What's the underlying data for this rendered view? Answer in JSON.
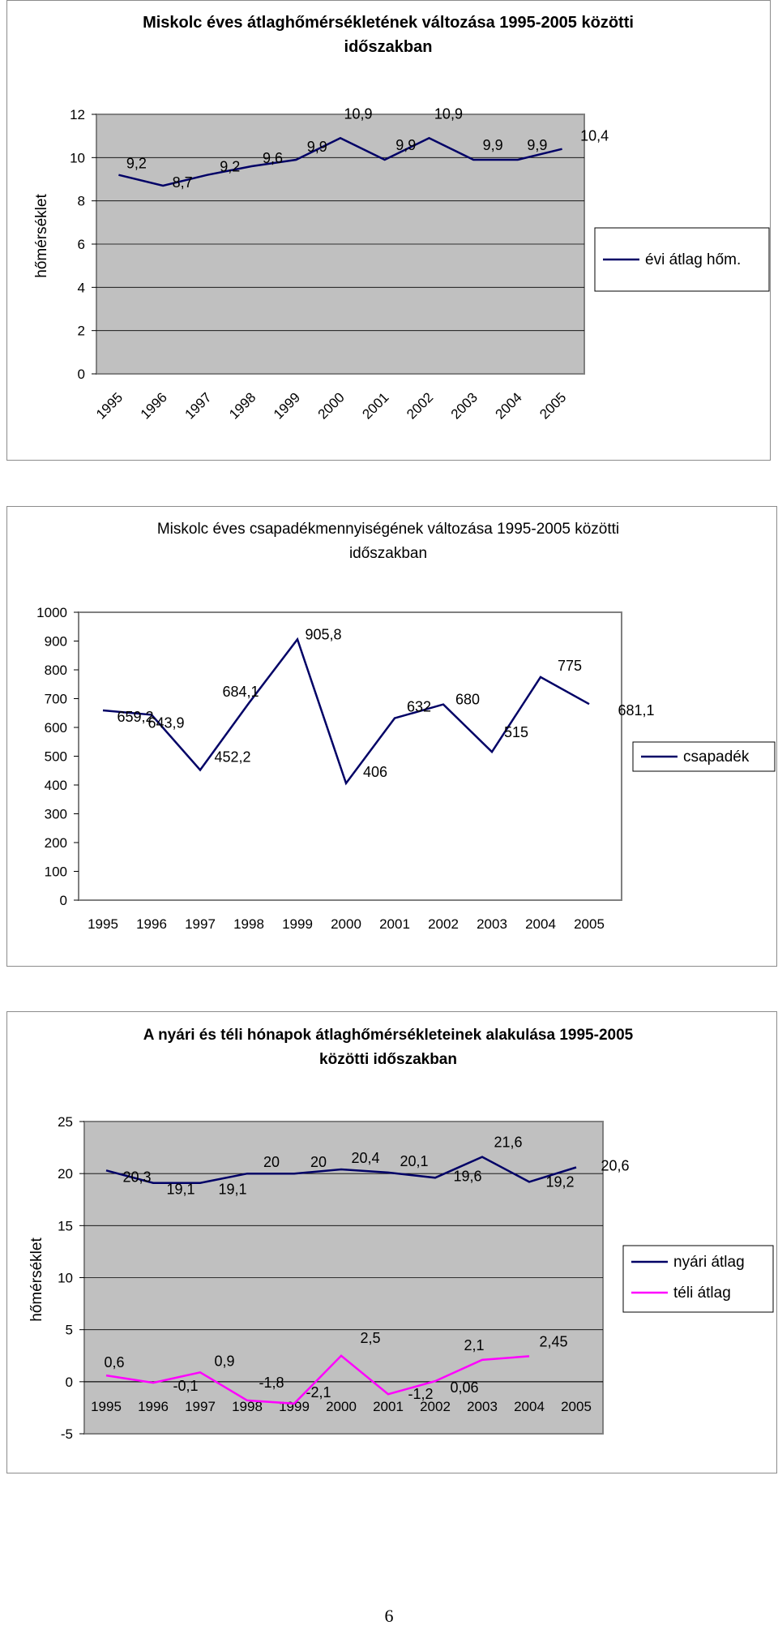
{
  "chart_data": [
    {
      "type": "line",
      "title": "Miskolc éves átlaghőmérsékletének változása 1995-2005 közötti időszakban",
      "title_lines": [
        "Miskolc éves átlaghőmérsékletének változása 1995-2005 közötti",
        "időszakban"
      ],
      "xlabel": "",
      "ylabel": "hőmérséklet",
      "categories": [
        "1995",
        "1996",
        "1997",
        "1998",
        "1999",
        "2000",
        "2001",
        "2002",
        "2003",
        "2004",
        "2005"
      ],
      "series": [
        {
          "name": "évi átlag hőm.",
          "color": "#000066",
          "values": [
            9.2,
            8.7,
            9.2,
            9.6,
            9.9,
            10.9,
            9.9,
            10.9,
            9.9,
            9.9,
            10.4
          ],
          "labels": [
            "9,2",
            "8,7",
            "9,2",
            "9,6",
            "9,9",
            "10,9",
            "9,9",
            "10,9",
            "9,9",
            "9,9",
            "10,4"
          ]
        }
      ],
      "ylim": [
        0,
        12
      ],
      "yticks": [
        "0",
        "2",
        "4",
        "6",
        "8",
        "10",
        "12"
      ],
      "grid": true,
      "legend": "right",
      "plot_background": "#c0c0c0"
    },
    {
      "type": "line",
      "title": "Miskolc éves csapadékmennyiségének változása 1995-2005 közötti időszakban",
      "title_lines": [
        "Miskolc éves csapadékmennyiségének változása 1995-2005 közötti",
        "időszakban"
      ],
      "xlabel": "",
      "ylabel": "",
      "categories": [
        "1995",
        "1996",
        "1997",
        "1998",
        "1999",
        "2000",
        "2001",
        "2002",
        "2003",
        "2004",
        "2005"
      ],
      "series": [
        {
          "name": "csapadék",
          "color": "#000066",
          "values": [
            659.2,
            643.9,
            452.2,
            684.1,
            905.8,
            406,
            632,
            680,
            515,
            775,
            681.1
          ],
          "labels": [
            "659,2",
            "643,9",
            "452,2",
            "684,1",
            "905,8",
            "406",
            "632",
            "680",
            "515",
            "775",
            "681,1"
          ]
        }
      ],
      "ylim": [
        0,
        1000
      ],
      "yticks": [
        "0",
        "100",
        "200",
        "300",
        "400",
        "500",
        "600",
        "700",
        "800",
        "900",
        "1000"
      ],
      "grid": false,
      "legend": "right",
      "plot_background": "#ffffff"
    },
    {
      "type": "line",
      "title": "A nyári és téli hónapok átlaghőmérsékleteinek alakulása 1995-2005 közötti időszakban",
      "title_lines": [
        "A nyári és téli hónapok átlaghőmérsékleteinek alakulása 1995-2005",
        "közötti időszakban"
      ],
      "xlabel": "",
      "ylabel": "hőmérséklet",
      "categories": [
        "1995",
        "1996",
        "1997",
        "1998",
        "1999",
        "2000",
        "2001",
        "2002",
        "2003",
        "2004",
        "2005"
      ],
      "series": [
        {
          "name": "nyári átlag",
          "color": "#000066",
          "values": [
            20.3,
            19.1,
            19.1,
            20,
            20,
            20.4,
            20.1,
            19.6,
            21.6,
            19.2,
            20.6
          ],
          "labels": [
            "20,3",
            "19,1",
            "19,1",
            "20",
            "20",
            "20,4",
            "20,1",
            "19,6",
            "21,6",
            "19,2",
            "20,6"
          ]
        },
        {
          "name": "téli átlag",
          "color": "#ff00ff",
          "values": [
            0.6,
            -0.1,
            0.9,
            -1.8,
            -2.1,
            2.5,
            -1.2,
            0.06,
            2.1,
            2.45,
            null
          ],
          "labels": [
            "0,6",
            "-0,1",
            "0,9",
            "-1,8",
            "-2,1",
            "2,5",
            "-1,2",
            "0,06",
            "2,1",
            "2,45",
            ""
          ]
        }
      ],
      "ylim": [
        -5,
        25
      ],
      "yticks": [
        "-5",
        "0",
        "5",
        "10",
        "15",
        "20",
        "25"
      ],
      "grid": true,
      "legend": "right",
      "plot_background": "#c0c0c0"
    }
  ],
  "page_number": "6"
}
